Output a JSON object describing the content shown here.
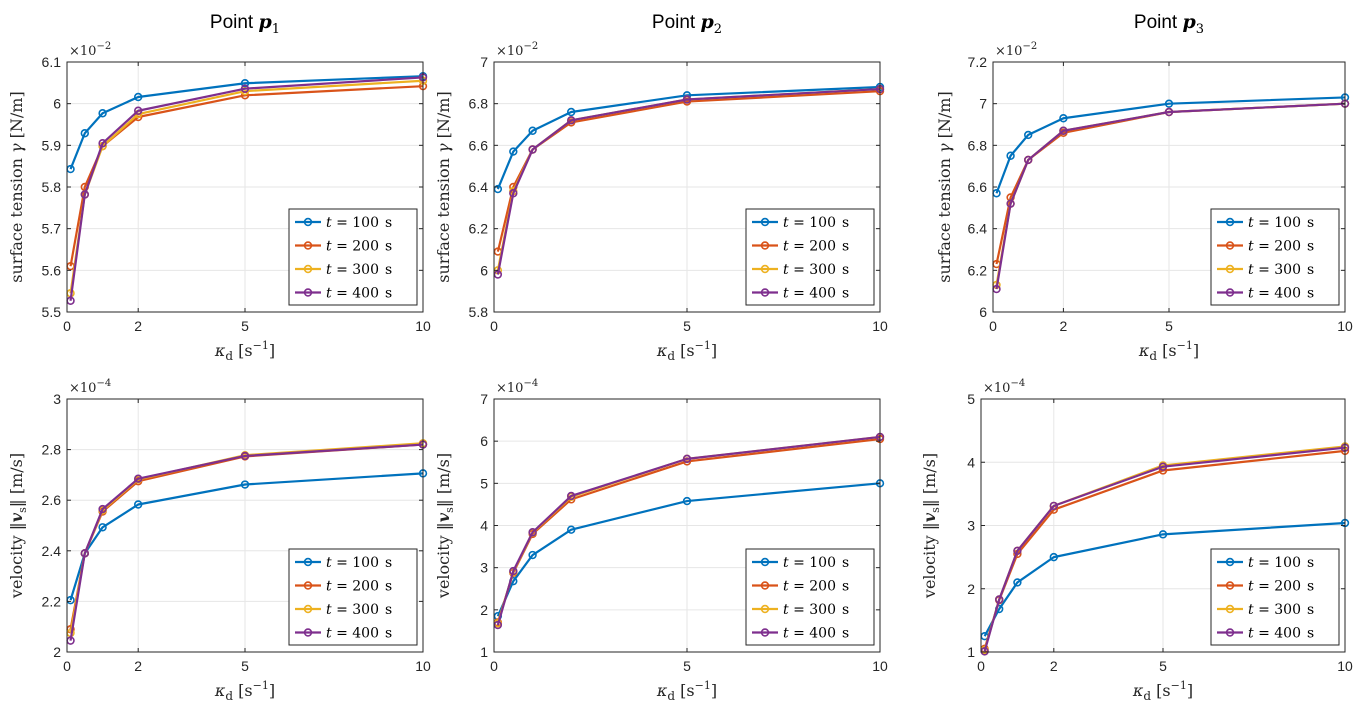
{
  "colors": {
    "t100": "#0072BD",
    "t200": "#D95319",
    "t300": "#EDB120",
    "t400": "#7E2F8E"
  },
  "chart_data": [
    {
      "type": "line",
      "title": "Point p1",
      "title_prefix": "Point ",
      "title_math": "p",
      "title_sub": "1",
      "xlabel": "κd [s−1]",
      "ylabel": "surface tension γ [N/m]",
      "y_exponent": "×10−2",
      "x": [
        0.1,
        0.5,
        1,
        2,
        5,
        10
      ],
      "xlim": [
        0,
        10
      ],
      "ylim": [
        5.5,
        6.1
      ],
      "xticks": [
        0,
        2,
        5,
        10
      ],
      "yticks": [
        5.5,
        5.6,
        5.7,
        5.8,
        5.9,
        6,
        6.1
      ],
      "xticklabels": [
        "0",
        "2",
        "5",
        "10"
      ],
      "yticklabels": [
        "5.5",
        "5.6",
        "5.7",
        "5.8",
        "5.9",
        "6",
        "6.1"
      ],
      "grid": true,
      "legend_position": "bottom-right",
      "series": [
        {
          "name": "t = 100  s",
          "color": "#0072BD",
          "values": [
            5.843,
            5.929,
            5.977,
            6.016,
            6.049,
            6.066
          ]
        },
        {
          "name": "t = 200  s",
          "color": "#D95319",
          "values": [
            5.61,
            5.8,
            5.898,
            5.968,
            6.02,
            6.042
          ]
        },
        {
          "name": "t = 300  s",
          "color": "#EDB120",
          "values": [
            5.545,
            5.782,
            5.898,
            5.975,
            6.03,
            6.055
          ]
        },
        {
          "name": "t = 400  s",
          "color": "#7E2F8E",
          "values": [
            5.527,
            5.782,
            5.905,
            5.983,
            6.036,
            6.063
          ]
        }
      ]
    },
    {
      "type": "line",
      "title": "Point p2",
      "title_prefix": "Point ",
      "title_math": "p",
      "title_sub": "2",
      "xlabel": "κd [s−1]",
      "ylabel": "surface tension γ [N/m]",
      "y_exponent": "×10−2",
      "x": [
        0.1,
        0.5,
        1,
        2,
        5,
        10
      ],
      "xlim": [
        0,
        10
      ],
      "ylim": [
        5.8,
        7.0
      ],
      "xticks": [
        0,
        5,
        10
      ],
      "yticks": [
        5.8,
        6.0,
        6.2,
        6.4,
        6.6,
        6.8,
        7.0
      ],
      "xticklabels": [
        "0",
        "5",
        "10"
      ],
      "yticklabels": [
        "5.8",
        "6",
        "6.2",
        "6.4",
        "6.6",
        "6.8",
        "7"
      ],
      "grid": true,
      "legend_position": "bottom-right",
      "series": [
        {
          "name": "t = 100  s",
          "color": "#0072BD",
          "values": [
            6.39,
            6.57,
            6.67,
            6.76,
            6.84,
            6.88
          ]
        },
        {
          "name": "t = 200  s",
          "color": "#D95319",
          "values": [
            6.09,
            6.4,
            6.58,
            6.71,
            6.81,
            6.86
          ]
        },
        {
          "name": "t = 300  s",
          "color": "#EDB120",
          "values": [
            6.0,
            6.38,
            6.58,
            6.72,
            6.82,
            6.87
          ]
        },
        {
          "name": "t = 400  s",
          "color": "#7E2F8E",
          "values": [
            5.98,
            6.37,
            6.58,
            6.72,
            6.82,
            6.87
          ]
        }
      ]
    },
    {
      "type": "line",
      "title": "Point p3",
      "title_prefix": "Point ",
      "title_math": "p",
      "title_sub": "3",
      "xlabel": "κd [s−1]",
      "ylabel": "surface tension γ [N/m]",
      "y_exponent": "×10−2",
      "x": [
        0.1,
        0.5,
        1,
        2,
        5,
        10
      ],
      "xlim": [
        0,
        10
      ],
      "ylim": [
        6.0,
        7.2
      ],
      "xticks": [
        0,
        2,
        5,
        10
      ],
      "yticks": [
        6.0,
        6.2,
        6.4,
        6.6,
        6.8,
        7.0,
        7.2
      ],
      "xticklabels": [
        "0",
        "2",
        "5",
        "10"
      ],
      "yticklabels": [
        "6",
        "6.2",
        "6.4",
        "6.6",
        "6.8",
        "7",
        "7.2"
      ],
      "grid": true,
      "legend_position": "bottom-right",
      "series": [
        {
          "name": "t = 100  s",
          "color": "#0072BD",
          "values": [
            6.57,
            6.75,
            6.85,
            6.93,
            7.0,
            7.03
          ]
        },
        {
          "name": "t = 200  s",
          "color": "#D95319",
          "values": [
            6.23,
            6.55,
            6.73,
            6.86,
            6.96,
            7.0
          ]
        },
        {
          "name": "t = 300  s",
          "color": "#EDB120",
          "values": [
            6.13,
            6.52,
            6.73,
            6.87,
            6.96,
            7.0
          ]
        },
        {
          "name": "t = 400  s",
          "color": "#7E2F8E",
          "values": [
            6.11,
            6.52,
            6.73,
            6.87,
            6.96,
            7.0
          ]
        }
      ]
    },
    {
      "type": "line",
      "title": "",
      "xlabel": "κd [s−1]",
      "ylabel": "velocity ‖vs‖ [m/s]",
      "y_exponent": "×10−4",
      "x": [
        0.1,
        0.5,
        1,
        2,
        5,
        10
      ],
      "xlim": [
        0,
        10
      ],
      "ylim": [
        2.0,
        3.0
      ],
      "xticks": [
        0,
        2,
        5,
        10
      ],
      "yticks": [
        2.0,
        2.2,
        2.4,
        2.6,
        2.8,
        3.0
      ],
      "xticklabels": [
        "0",
        "2",
        "5",
        "10"
      ],
      "yticklabels": [
        "2",
        "2.2",
        "2.4",
        "2.6",
        "2.8",
        "3"
      ],
      "grid": true,
      "legend_position": "bottom-right",
      "series": [
        {
          "name": "t = 100  s",
          "color": "#0072BD",
          "values": [
            2.205,
            2.39,
            2.493,
            2.583,
            2.662,
            2.706
          ]
        },
        {
          "name": "t = 200  s",
          "color": "#D95319",
          "values": [
            2.09,
            2.39,
            2.555,
            2.675,
            2.773,
            2.82
          ]
        },
        {
          "name": "t = 300  s",
          "color": "#EDB120",
          "values": [
            2.075,
            2.39,
            2.56,
            2.682,
            2.778,
            2.825
          ]
        },
        {
          "name": "t = 400  s",
          "color": "#7E2F8E",
          "values": [
            2.045,
            2.39,
            2.565,
            2.685,
            2.775,
            2.82
          ]
        }
      ]
    },
    {
      "type": "line",
      "title": "",
      "xlabel": "κd [s−1]",
      "ylabel": "velocity ‖vs‖ [m/s]",
      "y_exponent": "×10−4",
      "x": [
        0.1,
        0.5,
        1,
        2,
        5,
        10
      ],
      "xlim": [
        0,
        10
      ],
      "ylim": [
        1,
        7
      ],
      "xticks": [
        0,
        5,
        10
      ],
      "yticks": [
        1,
        2,
        3,
        4,
        5,
        6,
        7
      ],
      "xticklabels": [
        "0",
        "5",
        "10"
      ],
      "yticklabels": [
        "1",
        "2",
        "3",
        "4",
        "5",
        "6",
        "7"
      ],
      "grid": true,
      "legend_position": "bottom-right",
      "series": [
        {
          "name": "t = 100  s",
          "color": "#0072BD",
          "values": [
            1.85,
            2.68,
            3.3,
            3.9,
            4.58,
            5.0
          ]
        },
        {
          "name": "t = 200  s",
          "color": "#D95319",
          "values": [
            1.7,
            2.88,
            3.8,
            4.62,
            5.52,
            6.05
          ]
        },
        {
          "name": "t = 300  s",
          "color": "#EDB120",
          "values": [
            1.68,
            2.9,
            3.83,
            4.68,
            5.58,
            6.1
          ]
        },
        {
          "name": "t = 400  s",
          "color": "#7E2F8E",
          "values": [
            1.64,
            2.92,
            3.84,
            4.7,
            5.58,
            6.1
          ]
        }
      ]
    },
    {
      "type": "line",
      "title": "",
      "xlabel": "κd [s−1]",
      "ylabel": "velocity ‖vs‖ [m/s]",
      "y_exponent": "×10−4",
      "x": [
        0.1,
        0.5,
        1,
        2,
        5,
        10
      ],
      "xlim": [
        0,
        10
      ],
      "ylim": [
        1,
        5
      ],
      "xticks": [
        0,
        2,
        5,
        10
      ],
      "yticks": [
        1,
        2,
        3,
        4,
        5
      ],
      "xticklabels": [
        "0",
        "2",
        "5",
        "10"
      ],
      "yticklabels": [
        "1",
        "2",
        "3",
        "4",
        "5"
      ],
      "grid": true,
      "legend_position": "bottom-right",
      "series": [
        {
          "name": "t = 100  s",
          "color": "#0072BD",
          "values": [
            1.25,
            1.68,
            2.1,
            2.5,
            2.86,
            3.04
          ]
        },
        {
          "name": "t = 200  s",
          "color": "#D95319",
          "values": [
            1.05,
            1.82,
            2.55,
            3.25,
            3.87,
            4.18
          ]
        },
        {
          "name": "t = 300  s",
          "color": "#EDB120",
          "values": [
            1.03,
            1.83,
            2.6,
            3.31,
            3.95,
            4.25
          ]
        },
        {
          "name": "t = 400  s",
          "color": "#7E2F8E",
          "values": [
            1.01,
            1.83,
            2.6,
            3.31,
            3.93,
            4.23
          ]
        }
      ]
    }
  ]
}
